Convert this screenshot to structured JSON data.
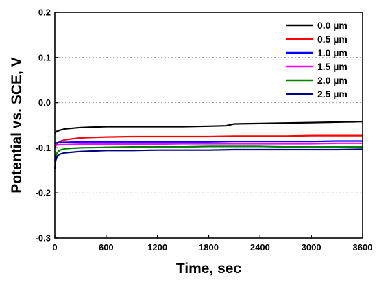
{
  "chart_data": {
    "type": "line",
    "xlabel": "Time, sec",
    "ylabel": "Potential vs. SCE, V",
    "xlim": [
      0,
      3600
    ],
    "ylim": [
      -0.3,
      0.2
    ],
    "xticks": [
      0,
      600,
      1200,
      1800,
      2400,
      3000,
      3600
    ],
    "yticks": [
      -0.3,
      -0.2,
      -0.1,
      0.0,
      0.1,
      0.2
    ],
    "ytick_labels": [
      "-0.3",
      "-0.2",
      "-0.1",
      "0.0",
      "0.1",
      "0.2"
    ],
    "grid": "horizontal dotted",
    "legend_position": "top-right",
    "series": [
      {
        "name": "0.0 µm",
        "color": "#000000",
        "x": [
          0,
          20,
          60,
          120,
          300,
          600,
          900,
          1200,
          1500,
          1800,
          2000,
          2100,
          2400,
          2700,
          3000,
          3300,
          3600
        ],
        "y": [
          -0.068,
          -0.064,
          -0.061,
          -0.058,
          -0.055,
          -0.053,
          -0.053,
          -0.053,
          -0.053,
          -0.052,
          -0.051,
          -0.047,
          -0.046,
          -0.045,
          -0.044,
          -0.043,
          -0.042
        ]
      },
      {
        "name": "0.5 µm",
        "color": "#ff0000",
        "x": [
          0,
          20,
          60,
          120,
          300,
          600,
          900,
          1200,
          1500,
          1800,
          2100,
          2400,
          2700,
          3000,
          3300,
          3600
        ],
        "y": [
          -0.1,
          -0.092,
          -0.086,
          -0.082,
          -0.078,
          -0.076,
          -0.075,
          -0.075,
          -0.075,
          -0.075,
          -0.074,
          -0.074,
          -0.074,
          -0.073,
          -0.073,
          -0.073
        ]
      },
      {
        "name": "1.0 µm",
        "color": "#0000ff",
        "x": [
          0,
          20,
          60,
          120,
          300,
          600,
          900,
          1200,
          1500,
          1800,
          2100,
          2400,
          2700,
          3000,
          3300,
          3600
        ],
        "y": [
          -0.09,
          -0.089,
          -0.088,
          -0.088,
          -0.087,
          -0.087,
          -0.087,
          -0.087,
          -0.087,
          -0.087,
          -0.086,
          -0.086,
          -0.086,
          -0.086,
          -0.085,
          -0.085
        ]
      },
      {
        "name": "1.5 µm",
        "color": "#ff00ff",
        "x": [
          0,
          20,
          60,
          120,
          300,
          600,
          900,
          1200,
          1500,
          1800,
          2100,
          2400,
          2700,
          3000,
          3300,
          3600
        ],
        "y": [
          -0.096,
          -0.094,
          -0.093,
          -0.093,
          -0.092,
          -0.092,
          -0.092,
          -0.092,
          -0.091,
          -0.091,
          -0.091,
          -0.091,
          -0.091,
          -0.091,
          -0.09,
          -0.09
        ]
      },
      {
        "name": "2.0 µm",
        "color": "#008000",
        "x": [
          0,
          10,
          30,
          60,
          120,
          300,
          600,
          900,
          1200,
          1500,
          1800,
          2100,
          2400,
          2700,
          3000,
          3300,
          3600
        ],
        "y": [
          -0.13,
          -0.118,
          -0.11,
          -0.105,
          -0.102,
          -0.1,
          -0.099,
          -0.098,
          -0.098,
          -0.098,
          -0.097,
          -0.097,
          -0.097,
          -0.098,
          -0.098,
          -0.098,
          -0.098
        ]
      },
      {
        "name": "2.5 µm",
        "color": "#000080",
        "x": [
          0,
          10,
          30,
          60,
          120,
          300,
          600,
          900,
          1200,
          1500,
          1800,
          2100,
          2400,
          2700,
          3000,
          3300,
          3600
        ],
        "y": [
          -0.148,
          -0.128,
          -0.118,
          -0.114,
          -0.111,
          -0.108,
          -0.106,
          -0.106,
          -0.105,
          -0.105,
          -0.105,
          -0.104,
          -0.104,
          -0.104,
          -0.104,
          -0.104,
          -0.103
        ]
      }
    ]
  }
}
